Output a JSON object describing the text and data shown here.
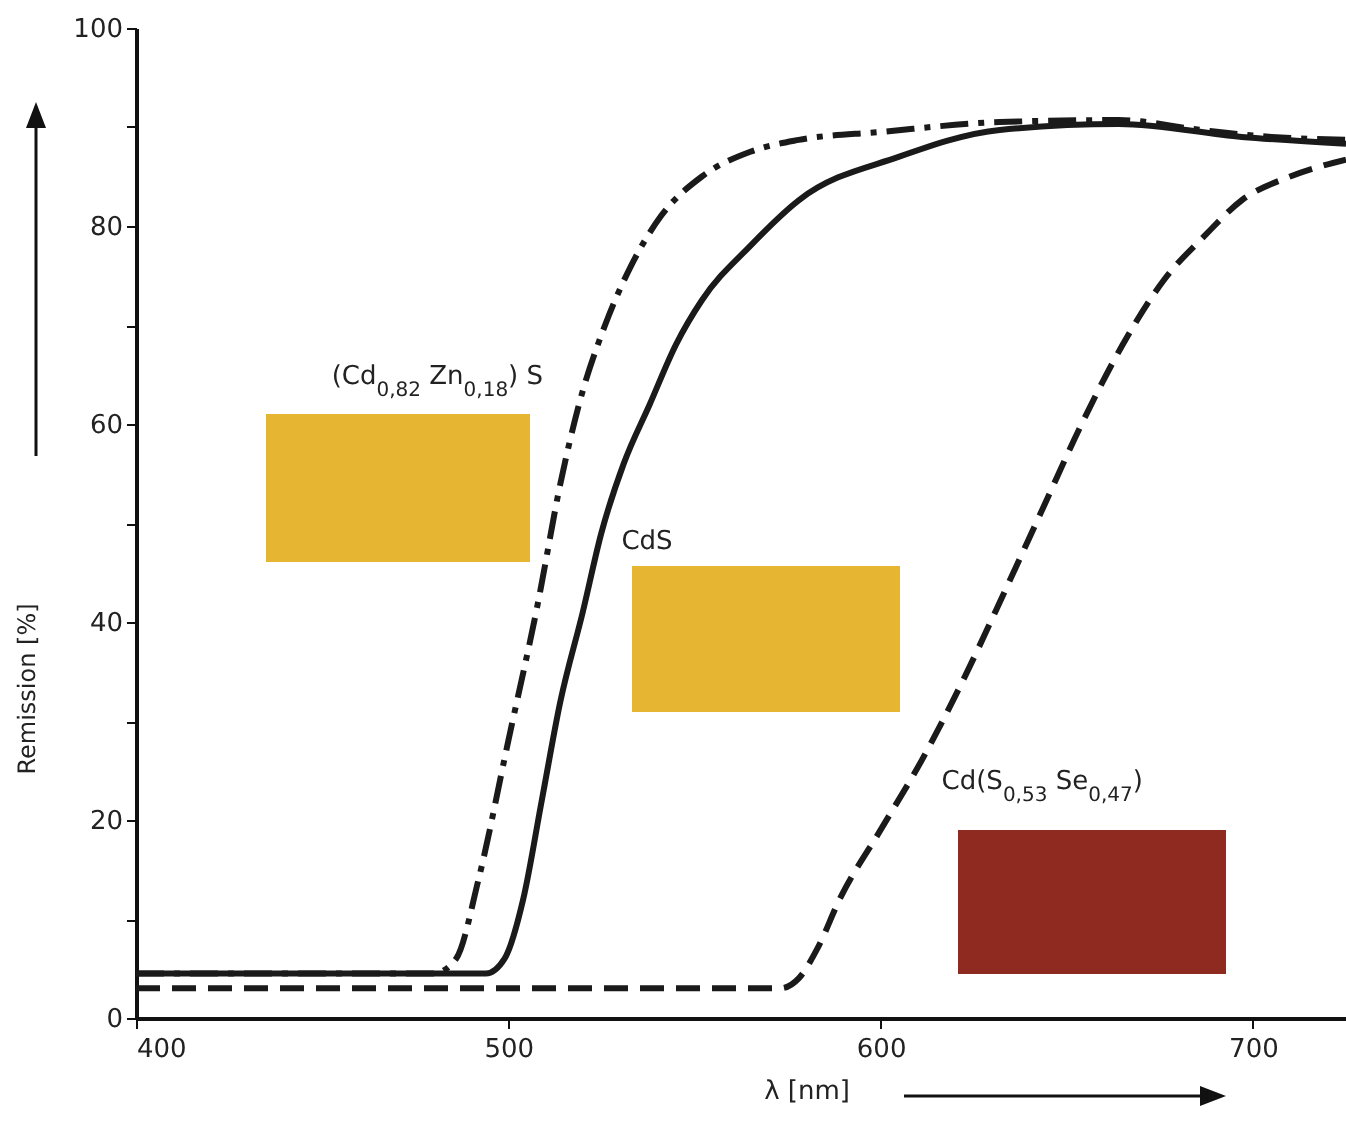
{
  "chart_data": {
    "type": "line",
    "xlabel": "λ [nm]",
    "ylabel": "Remission [%]",
    "xlim": [
      400,
      725
    ],
    "xticks": [
      400,
      500,
      600,
      700
    ],
    "ylim": [
      0,
      100
    ],
    "yticks": [
      0,
      {
        "value": 10,
        "label": null
      },
      20,
      {
        "value": 30,
        "label": null
      },
      40,
      {
        "value": 50,
        "label": null
      },
      60,
      {
        "value": 70,
        "label": null
      },
      80,
      {
        "value": 90,
        "label": null
      },
      100
    ],
    "grid": false,
    "legend": false,
    "marker": "none",
    "series": [
      {
        "name": "(Cd$_{0,82}$ Zn$_{0,18}$) S",
        "color": "#1a1a1a",
        "line_style": "dashdot",
        "x": [
          400,
          480,
          486,
          492,
          500,
          508,
          514,
          519,
          526,
          533,
          541,
          552,
          565,
          578,
          600,
          632,
          664,
          686,
          705,
          725
        ],
        "values": [
          4.5,
          4.5,
          6,
          14,
          28,
          42,
          54,
          62,
          70,
          76,
          81,
          85,
          87.5,
          88.7,
          89.5,
          90.5,
          90.7,
          89.7,
          89,
          88.7
        ]
      },
      {
        "name": "CdS",
        "color": "#1a1a1a",
        "line_style": "solid",
        "x": [
          400,
          494,
          499,
          504,
          509,
          514,
          520,
          525,
          531,
          538,
          545,
          552,
          565,
          578,
          605,
          632,
          664,
          697,
          725
        ],
        "values": [
          4.5,
          4.5,
          6,
          12,
          22,
          32,
          41,
          49,
          56,
          62,
          68,
          72.5,
          78,
          82.6,
          87,
          89.7,
          90.3,
          89,
          88.3
        ]
      },
      {
        "name": "Cd(S$_{0,53}$ Se$_{0,47}$)",
        "color": "#1a1a1a",
        "line_style": "dashed",
        "x": [
          400,
          573,
          578,
          583,
          589,
          600,
          611,
          622,
          632,
          643,
          654,
          665,
          676,
          687,
          697,
          710,
          725
        ],
        "values": [
          3,
          3,
          4,
          7,
          12,
          19,
          26,
          34,
          42,
          51,
          60,
          68,
          74.5,
          79,
          82.6,
          85,
          86.7
        ]
      }
    ]
  }
}
